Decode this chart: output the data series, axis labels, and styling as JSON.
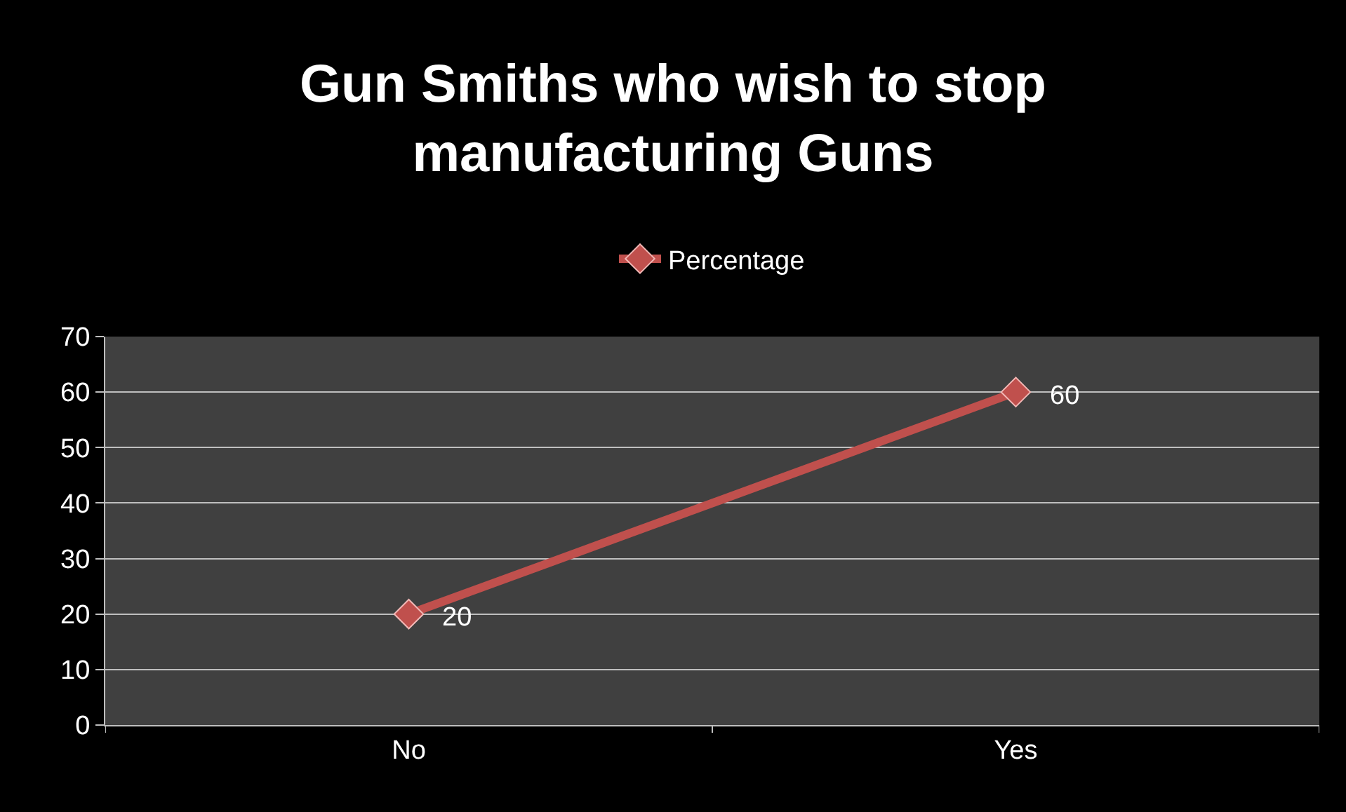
{
  "chart_data": {
    "type": "line",
    "title": "Gun Smiths who wish to stop manufacturing Guns",
    "categories": [
      "No",
      "Yes"
    ],
    "series": [
      {
        "name": "Percentage",
        "color": "#c0504d",
        "values": [
          20,
          60
        ]
      }
    ],
    "ylim": [
      0,
      70
    ],
    "yticks": [
      0,
      10,
      20,
      30,
      40,
      50,
      60,
      70
    ],
    "grid": "y",
    "legend": "top",
    "marker": "diamond",
    "line_style": "solid",
    "data_labels": true
  }
}
